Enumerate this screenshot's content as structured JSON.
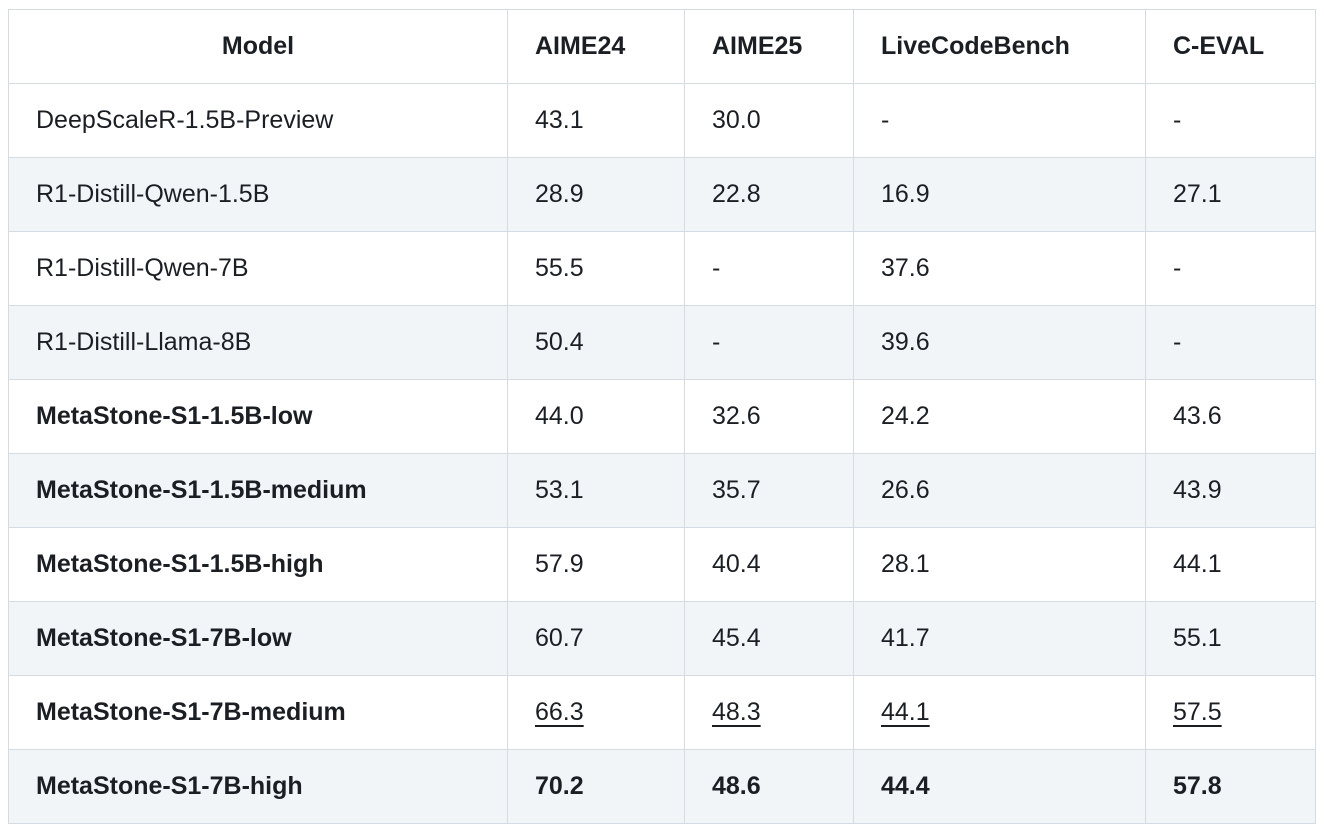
{
  "colors": {
    "background": "#ffffff",
    "row_alt_background": "#f2f5f8",
    "border": "#d4dbe2",
    "text": "#1b1f24"
  },
  "table": {
    "columns": [
      {
        "key": "model",
        "label": "Model"
      },
      {
        "key": "aime24",
        "label": "AIME24"
      },
      {
        "key": "aime25",
        "label": "AIME25"
      },
      {
        "key": "livecodebench",
        "label": "LiveCodeBench"
      },
      {
        "key": "c-eval",
        "label": "C-EVAL"
      }
    ],
    "rows": [
      {
        "model": "DeepScaleR-1.5B-Preview",
        "model_bold": false,
        "values": [
          "43.1",
          "30.0",
          "-",
          "-"
        ],
        "values_style": "normal"
      },
      {
        "model": "R1-Distill-Qwen-1.5B",
        "model_bold": false,
        "values": [
          "28.9",
          "22.8",
          "16.9",
          "27.1"
        ],
        "values_style": "normal"
      },
      {
        "model": "R1-Distill-Qwen-7B",
        "model_bold": false,
        "values": [
          "55.5",
          "-",
          "37.6",
          "-"
        ],
        "values_style": "normal"
      },
      {
        "model": "R1-Distill-Llama-8B",
        "model_bold": false,
        "values": [
          "50.4",
          "-",
          "39.6",
          "-"
        ],
        "values_style": "normal"
      },
      {
        "model": "MetaStone-S1-1.5B-low",
        "model_bold": true,
        "values": [
          "44.0",
          "32.6",
          "24.2",
          "43.6"
        ],
        "values_style": "normal"
      },
      {
        "model": "MetaStone-S1-1.5B-medium",
        "model_bold": true,
        "values": [
          "53.1",
          "35.7",
          "26.6",
          "43.9"
        ],
        "values_style": "normal"
      },
      {
        "model": "MetaStone-S1-1.5B-high",
        "model_bold": true,
        "values": [
          "57.9",
          "40.4",
          "28.1",
          "44.1"
        ],
        "values_style": "normal"
      },
      {
        "model": "MetaStone-S1-7B-low",
        "model_bold": true,
        "values": [
          "60.7",
          "45.4",
          "41.7",
          "55.1"
        ],
        "values_style": "normal"
      },
      {
        "model": "MetaStone-S1-7B-medium",
        "model_bold": true,
        "values": [
          "66.3",
          "48.3",
          "44.1",
          "57.5"
        ],
        "values_style": "underline"
      },
      {
        "model": "MetaStone-S1-7B-high",
        "model_bold": true,
        "values": [
          "70.2",
          "48.6",
          "44.4",
          "57.8"
        ],
        "values_style": "bold"
      }
    ]
  }
}
